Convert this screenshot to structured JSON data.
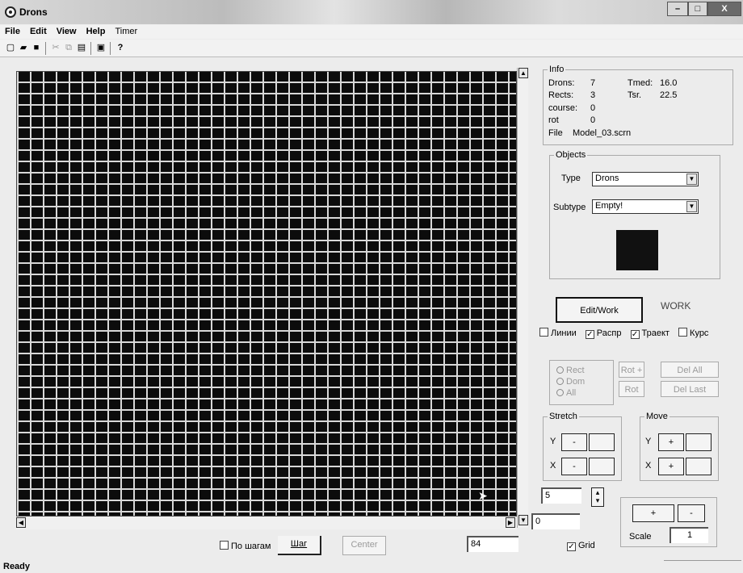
{
  "window": {
    "title": "Drons",
    "close_label": "X"
  },
  "menu": [
    "File",
    "Edit",
    "View",
    "Help",
    "Timer"
  ],
  "toolbar": {
    "icons": [
      "new-file-icon",
      "open-folder-icon",
      "save-icon",
      "cut-icon",
      "copy-icon",
      "paste-icon",
      "print-icon",
      "help-icon"
    ],
    "glyphs": [
      "▢",
      "▰",
      "■",
      "✂",
      "⧉",
      "▤",
      "▣",
      "?"
    ]
  },
  "info": {
    "title": "Info",
    "drons_label": "Drons:",
    "drons_value": "7",
    "tmed_label": "Tmed:",
    "tmed_value": "16.0",
    "rects_label": "Rects:",
    "rects_value": "3",
    "tsr_label": "Tsr.",
    "tsr_value": "22.5",
    "course_label": "course:",
    "course_value": "0",
    "rot_label": "rot",
    "rot_value": "0",
    "file_label": "File",
    "file_value": "Model_03.scrn"
  },
  "objects": {
    "title": "Objects",
    "type_label": "Type",
    "type_value": "Drons",
    "subtype_label": "Subtype",
    "subtype_value": "Empty!"
  },
  "mode": {
    "edit_work": "Edit/Work",
    "work": "WORK"
  },
  "checks": {
    "lines": "Линии",
    "lines_checked": false,
    "distr": "Распр",
    "distr_checked": true,
    "track": "Траект",
    "track_checked": true,
    "course": "Курс",
    "course_checked": false
  },
  "rect_ops": {
    "radios": [
      "Rect",
      "Dom",
      "All"
    ],
    "rot_plus": "Rot +",
    "rot": "Rot",
    "del_all": "Del All",
    "del_last": "Del Last"
  },
  "stretch": {
    "title": "Stretch",
    "y": "Y",
    "x": "X",
    "minus": "-"
  },
  "move": {
    "title": "Move",
    "y": "Y",
    "x": "X",
    "plus": "+"
  },
  "spin": {
    "value": "5",
    "zero": "0"
  },
  "scale": {
    "label": "Scale",
    "value": "1",
    "plus": "+",
    "minus": "-"
  },
  "bottom": {
    "step_mode": "По шагам",
    "step": "Шаг",
    "center": "Center",
    "position": "84",
    "grid": "Grid",
    "grid_checked": true
  },
  "status": "Ready"
}
